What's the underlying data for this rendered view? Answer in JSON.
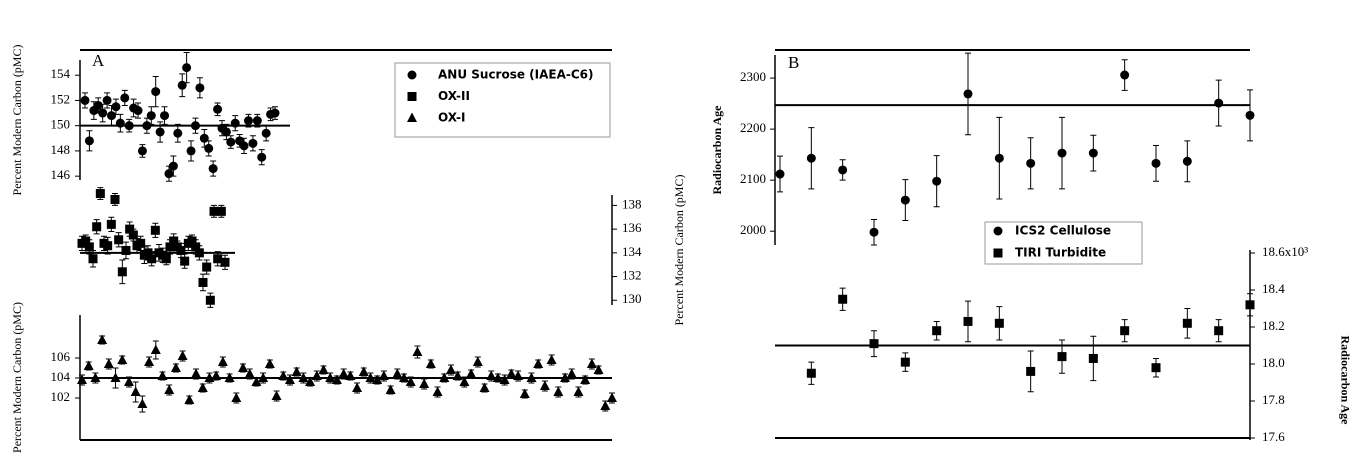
{
  "chart_data": [
    {
      "type": "scatter",
      "panel_label": "A",
      "series": [
        {
          "name": "ANU Sucrose (IAEA-C6)",
          "marker": "circle",
          "color": "#000000",
          "axis": "y",
          "ylabel": "Percent Modern Carbon (pMC)",
          "ylim": [
            145.3,
            155.6
          ],
          "yticks": [
            146,
            148,
            150,
            152,
            154
          ],
          "reference": 150,
          "values": [
            152.0,
            148.8,
            151.2,
            151.6,
            151.0,
            152.0,
            150.8,
            151.5,
            150.2,
            152.2,
            150.0,
            151.4,
            151.2,
            148.0,
            150.0,
            150.8,
            152.7,
            149.5,
            150.8,
            146.2,
            146.8,
            149.4,
            153.2,
            154.6,
            148.0,
            150.0,
            153.0,
            149.0,
            148.2,
            146.6,
            151.3,
            149.8,
            149.5,
            148.7,
            150.2,
            148.8,
            148.4,
            150.4,
            148.6,
            150.4,
            147.5,
            149.4,
            150.9,
            151.0
          ],
          "errors": [
            0.6,
            0.8,
            0.7,
            0.6,
            0.7,
            0.6,
            0.8,
            0.6,
            0.7,
            0.6,
            0.5,
            0.7,
            0.6,
            0.5,
            0.6,
            0.7,
            1.2,
            0.8,
            0.7,
            0.6,
            0.8,
            0.7,
            0.9,
            1.2,
            0.8,
            0.6,
            0.8,
            0.7,
            0.6,
            0.6,
            0.5,
            0.6,
            0.6,
            0.5,
            0.6,
            0.5,
            0.6,
            0.5,
            0.6,
            0.5,
            0.6,
            0.6,
            0.5,
            0.5
          ]
        },
        {
          "name": "OX-II",
          "marker": "square",
          "color": "#000000",
          "axis": "y2",
          "ylabel": "Percent Modern Carbon (pMC)",
          "ylim": [
            129.6,
            139.3
          ],
          "yticks": [
            130,
            132,
            134,
            136,
            138
          ],
          "reference": 134,
          "values": [
            134.8,
            135,
            134.5,
            133.5,
            136.2,
            139,
            134.8,
            134.6,
            136.4,
            138.5,
            135.1,
            132.4,
            134.2,
            136,
            135.5,
            134.6,
            134.8,
            133.8,
            134,
            133.5,
            135.9,
            134,
            133.8,
            133.5,
            134.5,
            135,
            134.5,
            134.2,
            133.3,
            134.8,
            135,
            134.5,
            134,
            131.5,
            132.8,
            130,
            137.5,
            133.5,
            137.5,
            133.2
          ],
          "errors": [
            0.6,
            0.5,
            0.6,
            0.7,
            0.6,
            0.5,
            0.6,
            0.7,
            0.6,
            0.5,
            0.6,
            1.0,
            0.7,
            0.6,
            0.5,
            0.6,
            0.6,
            0.7,
            0.6,
            0.6,
            0.6,
            0.7,
            0.6,
            0.5,
            0.6,
            0.6,
            0.5,
            0.6,
            0.6,
            0.6,
            0.5,
            0.6,
            0.6,
            0.7,
            0.6,
            0.6,
            0.5,
            0.6,
            0.5,
            0.6
          ]
        },
        {
          "name": "OX-I",
          "marker": "triangle",
          "color": "#000000",
          "axis": "y",
          "ylabel": "Percent Modern Carbon (pMC)",
          "ylim": [
            97.8,
            110.8
          ],
          "yticks": [
            102,
            104,
            106
          ],
          "reference": 104,
          "values": [
            103.8,
            105.2,
            104.0,
            107.8,
            105.4,
            104.0,
            105.8,
            103.6,
            102.6,
            101.4,
            105.6,
            106.8,
            104.2,
            102.8,
            105.0,
            106.2,
            101.8,
            104.4,
            103.0,
            104.0,
            104.2,
            105.6,
            104.0,
            102.0,
            105.0,
            104.4,
            103.6,
            104.0,
            105.4,
            102.2,
            104.2,
            103.8,
            104.6,
            104.0,
            103.6,
            104.2,
            104.8,
            104.0,
            103.8,
            104.4,
            104.2,
            103.0,
            104.6,
            104.0,
            103.8,
            104.2,
            102.8,
            104.4,
            104.0,
            103.6,
            106.6,
            103.4,
            105.4,
            102.6,
            104.0,
            104.8,
            104.2,
            103.6,
            104.4,
            105.6,
            103.0,
            104.2,
            104.0,
            103.8,
            104.4,
            104.2,
            102.4,
            104.0,
            105.4,
            103.2,
            105.8,
            102.6,
            104.0,
            104.4,
            102.6,
            103.8,
            105.4,
            104.8,
            101.2,
            102.0
          ],
          "errors": [
            0.5,
            0.4,
            0.5,
            0.4,
            0.5,
            1.0,
            0.4,
            0.5,
            1.0,
            0.8,
            0.5,
            0.9,
            0.4,
            0.5,
            0.4,
            0.5,
            0.4,
            0.5,
            0.4,
            0.5,
            0.4,
            0.5,
            0.4,
            0.5,
            0.4,
            0.5,
            0.4,
            0.5,
            0.4,
            0.5,
            0.4,
            0.5,
            0.4,
            0.5,
            0.4,
            0.5,
            0.4,
            0.5,
            0.4,
            0.5,
            0.4,
            0.5,
            0.4,
            0.5,
            0.4,
            0.5,
            0.4,
            0.5,
            0.4,
            0.5,
            0.6,
            0.5,
            0.4,
            0.5,
            0.4,
            0.5,
            0.4,
            0.5,
            0.4,
            0.5,
            0.4,
            0.5,
            0.4,
            0.5,
            0.4,
            0.5,
            0.4,
            0.5,
            0.4,
            0.5,
            0.5,
            0.5,
            0.4,
            0.5,
            0.5,
            0.4,
            0.5,
            0.4,
            0.5,
            0.5
          ]
        }
      ]
    },
    {
      "type": "scatter",
      "panel_label": "B",
      "ylabel": "Radiocarbon Age",
      "y2label": "Radiocarbon Age",
      "ylim": [
        1973,
        2355
      ],
      "yticks": [
        2000,
        2100,
        2200,
        2300
      ],
      "y2lim": [
        17.6,
        18.6
      ],
      "y2ticks": [
        17.6,
        17.8,
        {
          "value": 18,
          "label": "18.0"
        },
        18.2,
        18.4,
        {
          "value": 18.6,
          "label": "18.6x10³"
        }
      ],
      "series": [
        {
          "name": "ICS2 Cellulose",
          "marker": "circle",
          "color": "#000000",
          "axis": "y",
          "reference": 2247,
          "values": [
            2112,
            2143,
            2120,
            1998,
            2061,
            2098,
            2269,
            2143,
            2133,
            2153,
            2153,
            2306,
            2133,
            2137,
            2251,
            2227
          ],
          "errors": [
            35,
            60,
            20,
            25,
            40,
            50,
            80,
            80,
            50,
            70,
            35,
            30,
            35,
            40,
            45,
            50
          ]
        },
        {
          "name": "TIRI Turbidite",
          "marker": "square",
          "color": "#000000",
          "axis": "y2",
          "reference": 18.1,
          "values": [
            null,
            17.95,
            18.35,
            18.11,
            18.01,
            18.18,
            18.23,
            18.22,
            17.96,
            18.04,
            18.03,
            18.18,
            17.98,
            18.22,
            18.18,
            18.32
          ],
          "errors": [
            null,
            0.06,
            0.06,
            0.07,
            0.05,
            0.05,
            0.11,
            0.09,
            0.11,
            0.09,
            0.12,
            0.06,
            0.05,
            0.08,
            0.06,
            0.06
          ]
        }
      ]
    }
  ]
}
